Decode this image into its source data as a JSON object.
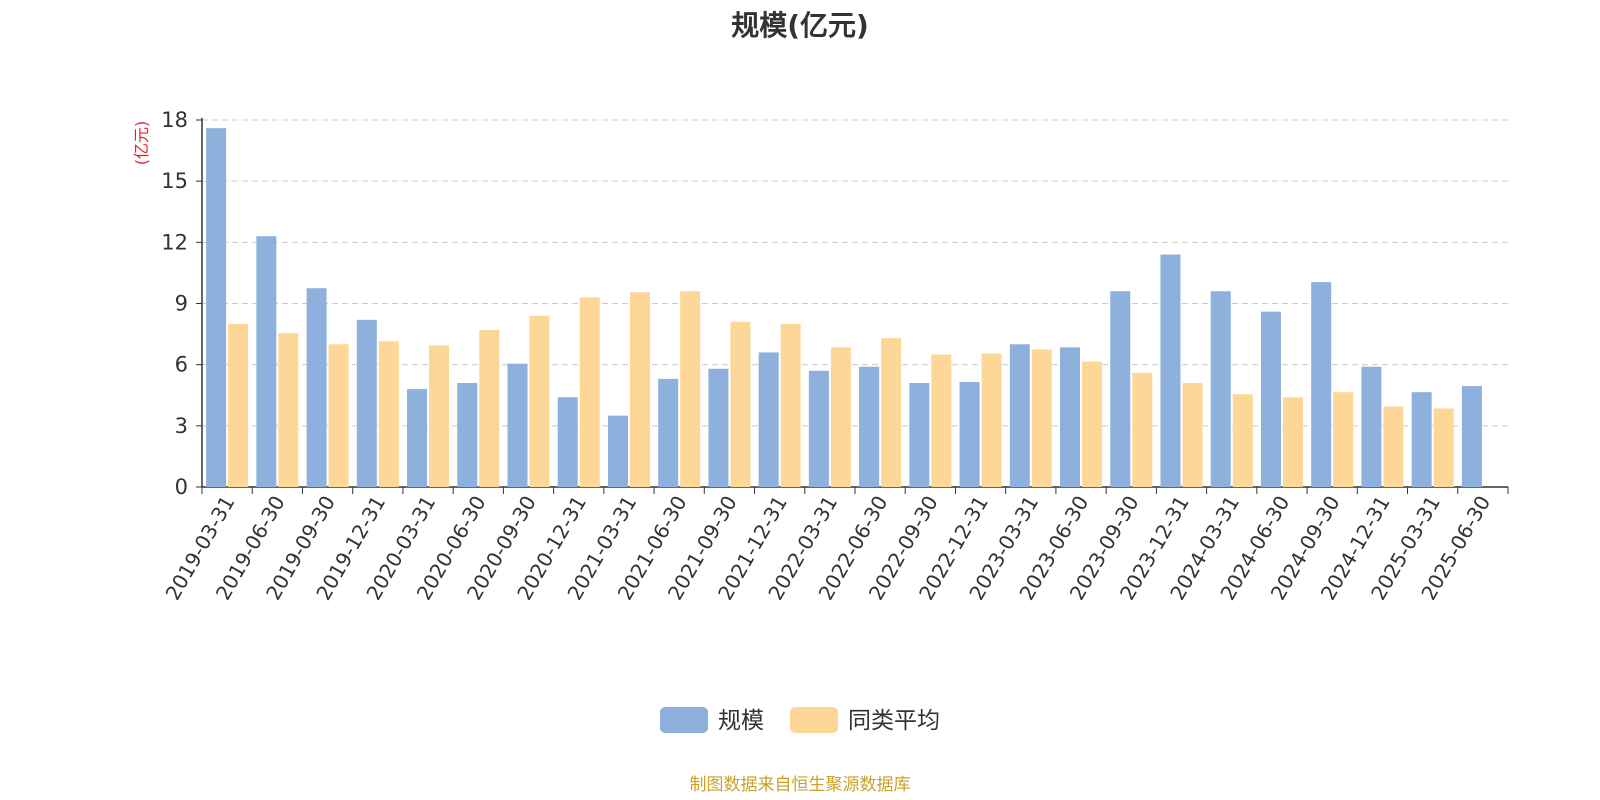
{
  "chart_data": {
    "type": "bar",
    "title": "规模(亿元)",
    "ylabel": "(亿元)",
    "xlabel": "",
    "ylim": [
      0,
      18
    ],
    "yticks": [
      0,
      3,
      6,
      9,
      12,
      15,
      18
    ],
    "grid": true,
    "legend_position": "bottom",
    "categories": [
      "2019-03-31",
      "2019-06-30",
      "2019-09-30",
      "2019-12-31",
      "2020-03-31",
      "2020-06-30",
      "2020-09-30",
      "2020-12-31",
      "2021-03-31",
      "2021-06-30",
      "2021-09-30",
      "2021-12-31",
      "2022-03-31",
      "2022-06-30",
      "2022-09-30",
      "2022-12-31",
      "2023-03-31",
      "2023-06-30",
      "2023-09-30",
      "2023-12-31",
      "2024-03-31",
      "2024-06-30",
      "2024-09-30",
      "2024-12-31",
      "2025-03-31",
      "2025-06-30"
    ],
    "series": [
      {
        "name": "规模",
        "color": "#8eb0dc",
        "values": [
          17.6,
          12.3,
          9.75,
          8.2,
          4.8,
          5.1,
          6.05,
          4.4,
          3.5,
          5.3,
          5.8,
          6.6,
          5.7,
          5.9,
          5.1,
          5.15,
          7.0,
          6.85,
          9.6,
          11.4,
          9.6,
          8.6,
          10.05,
          5.9,
          4.65,
          4.95
        ]
      },
      {
        "name": "同类平均",
        "color": "#fdd797",
        "values": [
          8.0,
          7.55,
          7.0,
          7.15,
          6.95,
          7.7,
          8.4,
          9.3,
          9.55,
          9.6,
          8.1,
          8.0,
          6.85,
          7.3,
          6.5,
          6.55,
          6.75,
          6.15,
          5.6,
          5.1,
          4.55,
          4.4,
          4.65,
          3.95,
          3.85,
          null
        ]
      }
    ]
  },
  "source_text": "制图数据来自恒生聚源数据库",
  "colors": {
    "axis": "#333333",
    "grid": "#cccccc",
    "ylabel": "#e8212c",
    "source": "#c9a227"
  }
}
